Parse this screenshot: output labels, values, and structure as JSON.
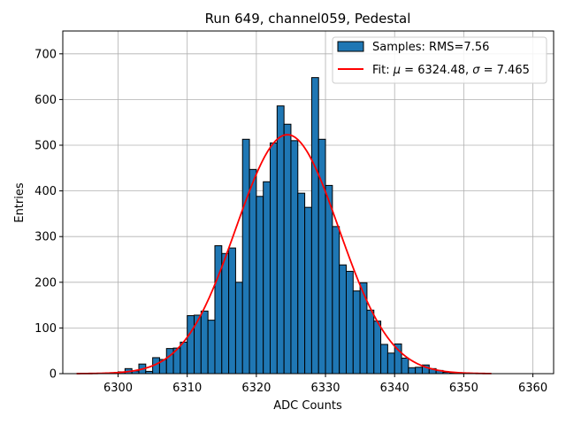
{
  "colors": {
    "bar_fill": "#1f77b4",
    "bar_edge": "#000000",
    "fit_line": "#ff0000",
    "grid": "#b0b0b0"
  },
  "chart_data": {
    "type": "bar",
    "title": "Run 649, channel059, Pedestal",
    "xlabel": "ADC Counts",
    "ylabel": "Entries",
    "xlim": [
      6292,
      6363
    ],
    "ylim": [
      0,
      750
    ],
    "xticks": [
      6300,
      6310,
      6320,
      6330,
      6340,
      6350,
      6360
    ],
    "yticks": [
      0,
      100,
      200,
      300,
      400,
      500,
      600,
      700
    ],
    "grid": true,
    "legend_position": "top-right",
    "legend": {
      "hist_label": "Samples: RMS=7.56",
      "fit_label_prefix": "Fit: ",
      "fit_label_mu": "μ",
      "fit_label_mid": " = 6324.48, ",
      "fit_label_sigma": "σ",
      "fit_label_suffix": " = 7.465"
    },
    "histogram": {
      "bin_start": 6300,
      "bin_width": 1,
      "values": [
        4,
        11,
        6,
        21,
        5,
        35,
        31,
        55,
        56,
        69,
        127,
        128,
        137,
        117,
        280,
        263,
        275,
        200,
        513,
        447,
        388,
        420,
        505,
        586,
        546,
        510,
        395,
        364,
        648,
        513,
        412,
        322,
        238,
        224,
        181,
        199,
        139,
        115,
        64,
        45,
        65,
        34,
        13,
        14,
        19,
        11,
        7,
        3,
        2,
        1
      ]
    },
    "fit": {
      "type": "gaussian",
      "mu": 6324.48,
      "sigma": 7.465,
      "amplitude": 523,
      "x_range": [
        6294,
        6354
      ]
    }
  }
}
